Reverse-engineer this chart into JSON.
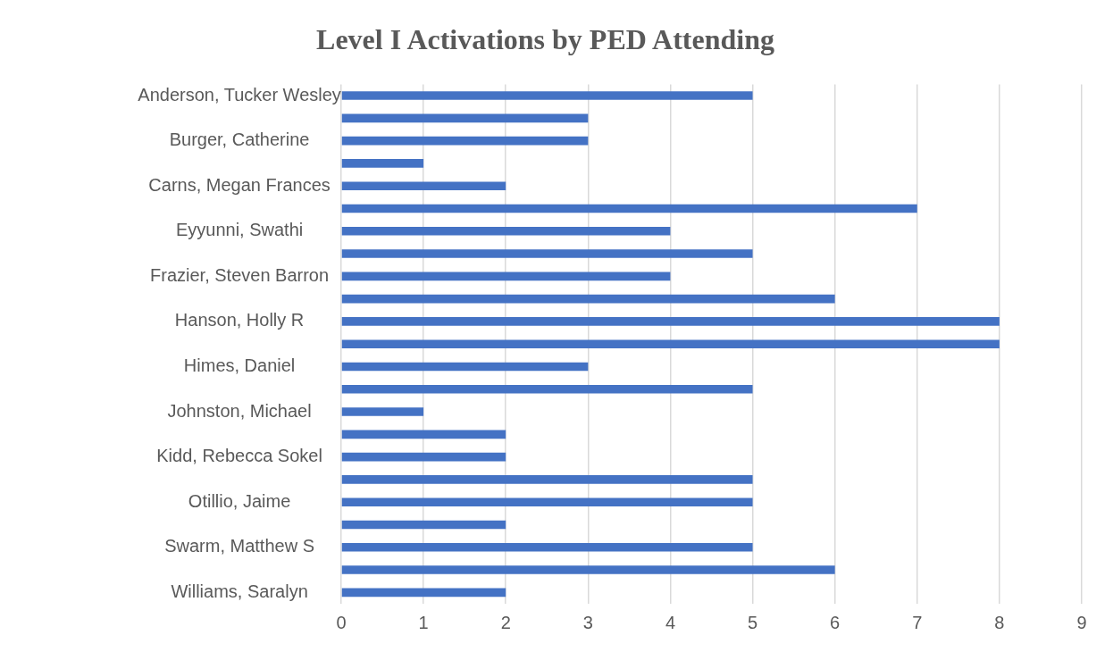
{
  "chart_data": {
    "type": "bar",
    "title": "Level I Activations by PED Attending",
    "orientation": "horizontal",
    "categories": [
      "Anderson, Tucker Wesley",
      null,
      "Burger, Catherine",
      null,
      "Carns, Megan Frances",
      null,
      "Eyyunni, Swathi",
      null,
      "Frazier, Steven Barron",
      null,
      "Hanson, Holly R",
      null,
      "Himes, Daniel",
      null,
      "Johnston, Michael",
      null,
      "Kidd, Rebecca Sokel",
      null,
      "Otillio, Jaime",
      null,
      "Swarm, Matthew S",
      null,
      "Williams, Saralyn"
    ],
    "values": [
      5,
      3,
      3,
      1,
      2,
      7,
      4,
      5,
      4,
      6,
      8,
      8,
      3,
      5,
      1,
      2,
      2,
      5,
      5,
      2,
      5,
      6,
      2
    ],
    "color": "#4472c4",
    "xlim": [
      0,
      9
    ],
    "xticks": [
      0,
      1,
      2,
      3,
      4,
      5,
      6,
      7,
      8,
      9
    ],
    "grid": "x",
    "legend": false
  }
}
